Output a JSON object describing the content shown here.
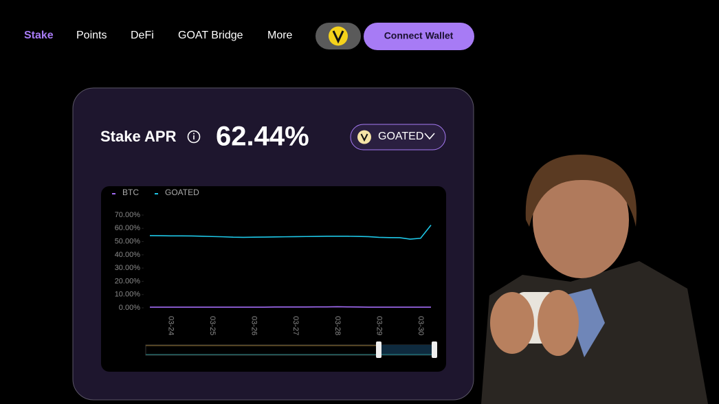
{
  "nav": {
    "items": [
      "Stake",
      "Points",
      "DeFi",
      "GOAT Bridge",
      "More"
    ],
    "button": "Connect Wallet"
  },
  "card": {
    "title": "Stake APR",
    "apr": "62.44%",
    "token": "GOATED"
  },
  "chart_data": {
    "type": "line",
    "categories": [
      null,
      null,
      "03-24",
      null,
      null,
      null,
      "03-25",
      null,
      null,
      null,
      "03-26",
      null,
      null,
      null,
      "03-27",
      null,
      null,
      null,
      "03-28",
      null,
      null,
      null,
      "03-29",
      null,
      null,
      null,
      "03-30",
      null
    ],
    "series": [
      {
        "name": "BTC",
        "color": "#a26bf5",
        "values": [
          0.5,
          0.5,
          0.5,
          0.5,
          0.5,
          0.5,
          0.5,
          0.5,
          0.5,
          0.5,
          0.5,
          0.5,
          0.6,
          0.6,
          0.6,
          0.6,
          0.7,
          0.7,
          0.8,
          0.7,
          0.6,
          0.5,
          0.5,
          0.5,
          0.5,
          0.5,
          0.5,
          0.5
        ]
      },
      {
        "name": "GOATED",
        "color": "#1ec8e8",
        "values": [
          54.5,
          54.4,
          54.3,
          54.3,
          54.2,
          54.0,
          53.8,
          53.6,
          53.3,
          53.2,
          53.3,
          53.4,
          53.5,
          53.6,
          53.7,
          53.8,
          53.9,
          54.0,
          54.0,
          54.0,
          53.9,
          53.7,
          53.2,
          53.0,
          52.9,
          51.8,
          52.5,
          62.4
        ]
      }
    ],
    "ylim": [
      0,
      70
    ],
    "yticks": [
      {
        "value": 0,
        "label": "0.00%"
      },
      {
        "value": 10,
        "label": "10.00%"
      },
      {
        "value": 20,
        "label": "20.00%"
      },
      {
        "value": 30,
        "label": "30.00%"
      },
      {
        "value": 40,
        "label": "40.00%"
      },
      {
        "value": 50,
        "label": "50.00%"
      },
      {
        "value": 60,
        "label": "60.00%"
      },
      {
        "value": 70,
        "label": "70.00%"
      }
    ],
    "legend": "top-left",
    "grid": false
  }
}
